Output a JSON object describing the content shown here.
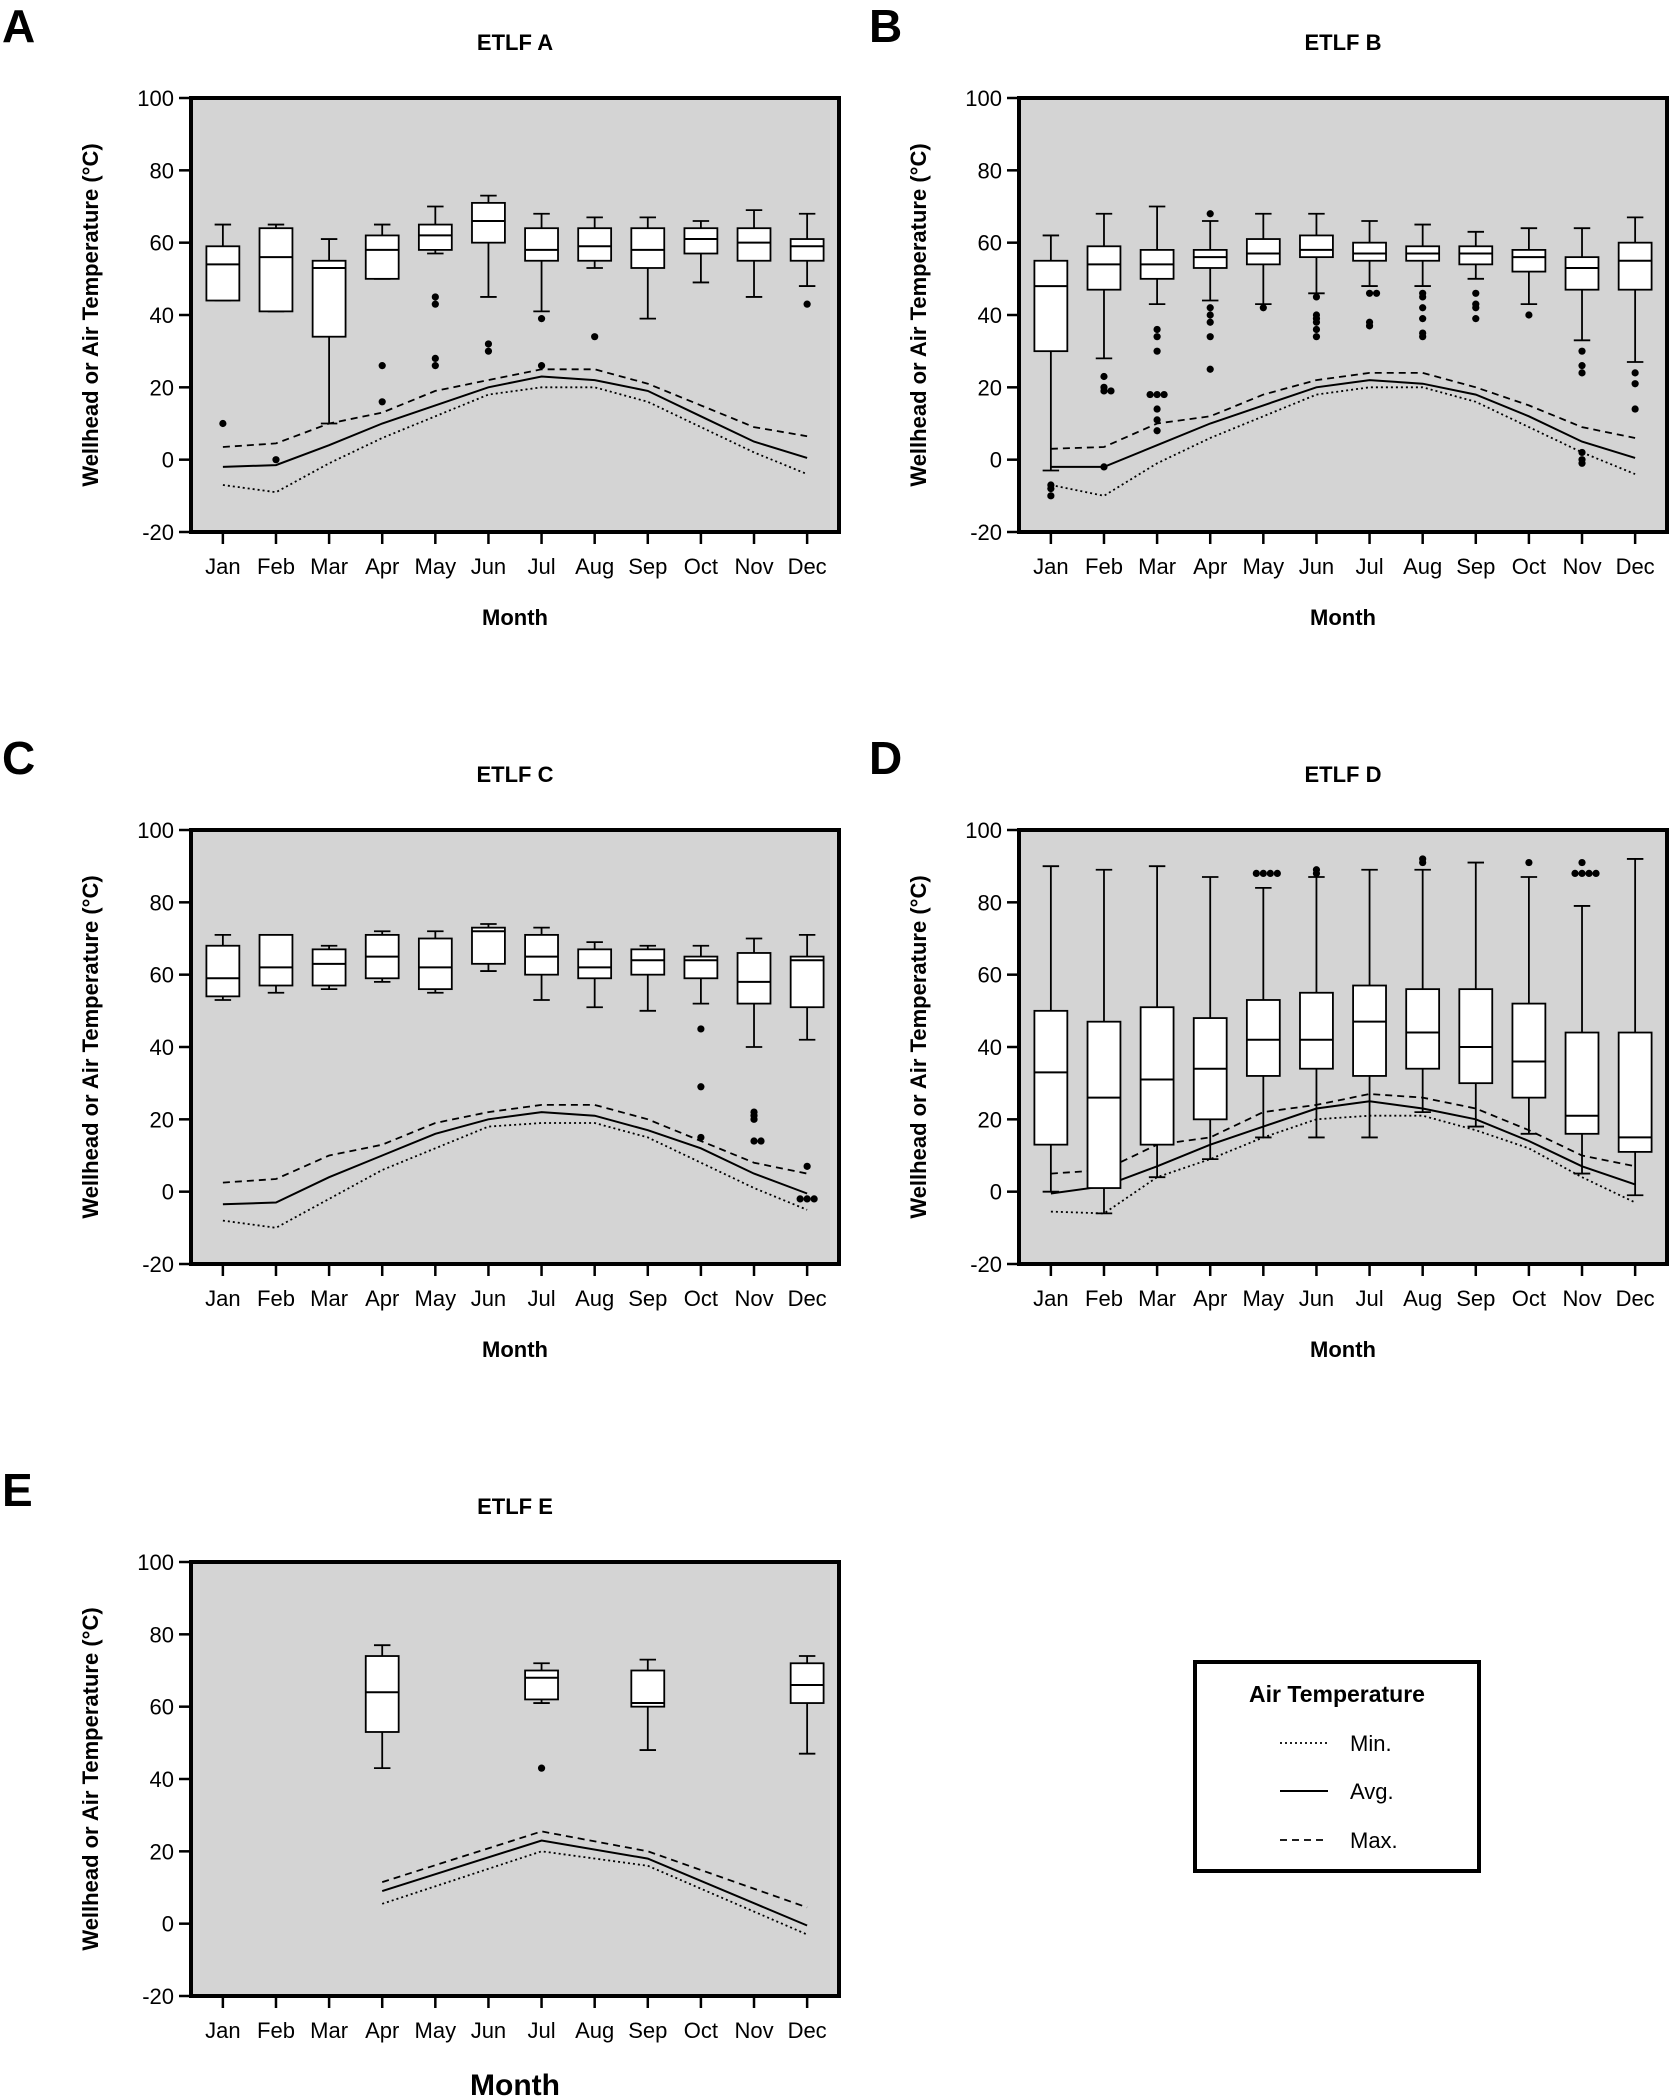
{
  "chart_data": [
    {
      "panel": "A",
      "type": "box",
      "title": "ETLF A",
      "xlabel": "Month",
      "ylabel": "Wellhead or Air Temperature (°C)",
      "ylim": [
        -20,
        100
      ],
      "yticks": [
        -20,
        0,
        20,
        40,
        60,
        80,
        100
      ],
      "categories": [
        "Jan",
        "Feb",
        "Mar",
        "Apr",
        "May",
        "Jun",
        "Jul",
        "Aug",
        "Sep",
        "Oct",
        "Nov",
        "Dec"
      ],
      "boxes": [
        {
          "min": 44,
          "q1": 44,
          "median": 54,
          "q3": 59,
          "max": 65,
          "outliers": [
            10
          ]
        },
        {
          "min": 41,
          "q1": 41,
          "median": 56,
          "q3": 64,
          "max": 65,
          "outliers": [
            0
          ]
        },
        {
          "min": 10,
          "q1": 34,
          "median": 53,
          "q3": 55,
          "max": 61,
          "outliers": []
        },
        {
          "min": 50,
          "q1": 50,
          "median": 58,
          "q3": 62,
          "max": 65,
          "outliers": [
            26,
            16
          ]
        },
        {
          "min": 57,
          "q1": 58,
          "median": 62,
          "q3": 65,
          "max": 70,
          "outliers": [
            45,
            43,
            28,
            26
          ]
        },
        {
          "min": 45,
          "q1": 60,
          "median": 66,
          "q3": 71,
          "max": 73,
          "outliers": [
            32,
            30
          ]
        },
        {
          "min": 41,
          "q1": 55,
          "median": 58,
          "q3": 64,
          "max": 68,
          "outliers": [
            39,
            26
          ]
        },
        {
          "min": 53,
          "q1": 55,
          "median": 59,
          "q3": 64,
          "max": 67,
          "outliers": [
            34
          ]
        },
        {
          "min": 39,
          "q1": 53,
          "median": 58,
          "q3": 64,
          "max": 67,
          "outliers": []
        },
        {
          "min": 49,
          "q1": 57,
          "median": 61,
          "q3": 64,
          "max": 66,
          "outliers": []
        },
        {
          "min": 45,
          "q1": 55,
          "median": 60,
          "q3": 64,
          "max": 69,
          "outliers": []
        },
        {
          "min": 48,
          "q1": 55,
          "median": 59,
          "q3": 61,
          "max": 68,
          "outliers": [
            43
          ]
        }
      ],
      "air": {
        "min": [
          -7,
          -9,
          -1,
          6,
          12,
          18,
          20,
          20,
          16,
          9,
          2,
          -4
        ],
        "avg": [
          -2,
          -1.5,
          4,
          10,
          15,
          20,
          23,
          22,
          19,
          12,
          5,
          0.5
        ],
        "max": [
          3.5,
          4.5,
          10,
          13,
          19,
          22,
          25,
          25,
          21,
          15,
          9,
          6.5
        ]
      }
    },
    {
      "panel": "B",
      "type": "box",
      "title": "ETLF B",
      "xlabel": "Month",
      "ylabel": "Wellhead or Air Temperature (°C)",
      "ylim": [
        -20,
        100
      ],
      "yticks": [
        -20,
        0,
        20,
        40,
        60,
        80,
        100
      ],
      "categories": [
        "Jan",
        "Feb",
        "Mar",
        "Apr",
        "May",
        "Jun",
        "Jul",
        "Aug",
        "Sep",
        "Oct",
        "Nov",
        "Dec"
      ],
      "boxes": [
        {
          "min": -3,
          "q1": 30,
          "median": 48,
          "q3": 55,
          "max": 62,
          "outliers": [
            -7,
            -8,
            -10
          ]
        },
        {
          "min": 28,
          "q1": 47,
          "median": 54,
          "q3": 59,
          "max": 68,
          "outliers": [
            23,
            20,
            19,
            19,
            -2
          ]
        },
        {
          "min": 43,
          "q1": 50,
          "median": 54,
          "q3": 58,
          "max": 70,
          "outliers": [
            36,
            34,
            30,
            18,
            18,
            18,
            14,
            11,
            8
          ]
        },
        {
          "min": 44,
          "q1": 53,
          "median": 56,
          "q3": 58,
          "max": 66,
          "outliers": [
            68,
            42,
            40,
            38,
            34,
            25
          ]
        },
        {
          "min": 43,
          "q1": 54,
          "median": 57,
          "q3": 61,
          "max": 68,
          "outliers": [
            42
          ]
        },
        {
          "min": 46,
          "q1": 56,
          "median": 58,
          "q3": 62,
          "max": 68,
          "outliers": [
            45,
            40,
            39,
            38,
            36,
            34
          ]
        },
        {
          "min": 48,
          "q1": 55,
          "median": 57,
          "q3": 60,
          "max": 66,
          "outliers": [
            46,
            46,
            38,
            37
          ]
        },
        {
          "min": 48,
          "q1": 55,
          "median": 57,
          "q3": 59,
          "max": 65,
          "outliers": [
            46,
            45,
            42,
            39,
            35,
            34
          ]
        },
        {
          "min": 50,
          "q1": 54,
          "median": 57,
          "q3": 59,
          "max": 63,
          "outliers": [
            46,
            43,
            42,
            39
          ]
        },
        {
          "min": 43,
          "q1": 52,
          "median": 56,
          "q3": 58,
          "max": 64,
          "outliers": [
            40
          ]
        },
        {
          "min": 33,
          "q1": 47,
          "median": 53,
          "q3": 56,
          "max": 64,
          "outliers": [
            30,
            26,
            24,
            2,
            0,
            -1
          ]
        },
        {
          "min": 27,
          "q1": 47,
          "median": 55,
          "q3": 60,
          "max": 67,
          "outliers": [
            24,
            21,
            14
          ]
        }
      ],
      "air": {
        "min": [
          -7,
          -10,
          -1,
          6,
          12,
          18,
          20,
          20,
          16,
          9,
          2,
          -4
        ],
        "avg": [
          -2,
          -2,
          4,
          10,
          15,
          20,
          22,
          21,
          18,
          12,
          5,
          0.5
        ],
        "max": [
          3,
          3.5,
          10,
          12,
          18,
          22,
          24,
          24,
          20,
          15,
          9,
          6
        ]
      }
    },
    {
      "panel": "C",
      "type": "box",
      "title": "ETLF C",
      "xlabel": "Month",
      "ylabel": "Wellhead or Air Temperature (°C)",
      "ylim": [
        -20,
        100
      ],
      "yticks": [
        -20,
        0,
        20,
        40,
        60,
        80,
        100
      ],
      "categories": [
        "Jan",
        "Feb",
        "Mar",
        "Apr",
        "May",
        "Jun",
        "Jul",
        "Aug",
        "Sep",
        "Oct",
        "Nov",
        "Dec"
      ],
      "boxes": [
        {
          "min": 53,
          "q1": 54,
          "median": 59,
          "q3": 68,
          "max": 71,
          "outliers": []
        },
        {
          "min": 55,
          "q1": 57,
          "median": 62,
          "q3": 71,
          "max": 71,
          "outliers": []
        },
        {
          "min": 56,
          "q1": 57,
          "median": 63,
          "q3": 67,
          "max": 68,
          "outliers": []
        },
        {
          "min": 58,
          "q1": 59,
          "median": 65,
          "q3": 71,
          "max": 72,
          "outliers": []
        },
        {
          "min": 55,
          "q1": 56,
          "median": 62,
          "q3": 70,
          "max": 72,
          "outliers": []
        },
        {
          "min": 61,
          "q1": 63,
          "median": 72,
          "q3": 73,
          "max": 74,
          "outliers": []
        },
        {
          "min": 53,
          "q1": 60,
          "median": 65,
          "q3": 71,
          "max": 73,
          "outliers": []
        },
        {
          "min": 51,
          "q1": 59,
          "median": 62,
          "q3": 67,
          "max": 69,
          "outliers": []
        },
        {
          "min": 50,
          "q1": 60,
          "median": 64,
          "q3": 67,
          "max": 68,
          "outliers": []
        },
        {
          "min": 52,
          "q1": 59,
          "median": 64,
          "q3": 65,
          "max": 68,
          "outliers": [
            45,
            29,
            15
          ]
        },
        {
          "min": 40,
          "q1": 52,
          "median": 58,
          "q3": 66,
          "max": 70,
          "outliers": [
            22,
            21,
            20,
            14,
            14
          ]
        },
        {
          "min": 42,
          "q1": 51,
          "median": 64,
          "q3": 65,
          "max": 71,
          "outliers": [
            7,
            -2,
            -2,
            -2
          ]
        }
      ],
      "air": {
        "min": [
          -8,
          -10,
          -2,
          6,
          12,
          18,
          19,
          19,
          15,
          8,
          1,
          -5
        ],
        "avg": [
          -3.5,
          -3,
          4,
          10,
          16,
          20,
          22,
          21,
          17,
          12,
          5,
          -0.5
        ],
        "max": [
          2.5,
          3.5,
          10,
          13,
          19,
          22,
          24,
          24,
          20,
          14,
          8,
          5
        ]
      }
    },
    {
      "panel": "D",
      "type": "box",
      "title": "ETLF D",
      "xlabel": "Month",
      "ylabel": "Wellhead or Air Temperature (°C)",
      "ylim": [
        -20,
        100
      ],
      "yticks": [
        -20,
        0,
        20,
        40,
        60,
        80,
        100
      ],
      "categories": [
        "Jan",
        "Feb",
        "Mar",
        "Apr",
        "May",
        "Jun",
        "Jul",
        "Aug",
        "Sep",
        "Oct",
        "Nov",
        "Dec"
      ],
      "boxes": [
        {
          "min": 0,
          "q1": 13,
          "median": 33,
          "q3": 50,
          "max": 90,
          "outliers": []
        },
        {
          "min": -6,
          "q1": 1,
          "median": 26,
          "q3": 47,
          "max": 89,
          "outliers": []
        },
        {
          "min": 4,
          "q1": 13,
          "median": 31,
          "q3": 51,
          "max": 90,
          "outliers": []
        },
        {
          "min": 9,
          "q1": 20,
          "median": 34,
          "q3": 48,
          "max": 87,
          "outliers": []
        },
        {
          "min": 15,
          "q1": 32,
          "median": 42,
          "q3": 53,
          "max": 84,
          "outliers": [
            88,
            88,
            88,
            88
          ]
        },
        {
          "min": 15,
          "q1": 34,
          "median": 42,
          "q3": 55,
          "max": 87,
          "outliers": [
            89,
            88
          ]
        },
        {
          "min": 15,
          "q1": 32,
          "median": 47,
          "q3": 57,
          "max": 89,
          "outliers": []
        },
        {
          "min": 22,
          "q1": 34,
          "median": 44,
          "q3": 56,
          "max": 89,
          "outliers": [
            92,
            91
          ]
        },
        {
          "min": 18,
          "q1": 30,
          "median": 40,
          "q3": 56,
          "max": 91,
          "outliers": []
        },
        {
          "min": 16,
          "q1": 26,
          "median": 36,
          "q3": 52,
          "max": 87,
          "outliers": [
            91
          ]
        },
        {
          "min": 5,
          "q1": 16,
          "median": 21,
          "q3": 44,
          "max": 79,
          "outliers": [
            88,
            88,
            88,
            88,
            91
          ]
        },
        {
          "min": -1,
          "q1": 11,
          "median": 15,
          "q3": 44,
          "max": 92,
          "outliers": []
        }
      ],
      "air": {
        "min": [
          -5.5,
          -6,
          4,
          9,
          15,
          20,
          21,
          21,
          17,
          12,
          4,
          -3
        ],
        "avg": [
          -0.5,
          1.5,
          7,
          13,
          18,
          23,
          25,
          23,
          20,
          14,
          7,
          2
        ],
        "max": [
          5,
          6,
          13,
          15,
          22,
          24,
          27,
          26,
          23,
          17,
          10,
          7
        ]
      }
    },
    {
      "panel": "E",
      "type": "box",
      "title": "ETLF E",
      "xlabel": "Month",
      "ylabel": "Wellhead or Air Temperature (°C)",
      "ylim": [
        -20,
        100
      ],
      "yticks": [
        -20,
        0,
        20,
        40,
        60,
        80,
        100
      ],
      "categories": [
        "Jan",
        "Feb",
        "Mar",
        "Apr",
        "May",
        "Jun",
        "Jul",
        "Aug",
        "Sep",
        "Oct",
        "Nov",
        "Dec"
      ],
      "boxes": [
        null,
        null,
        null,
        {
          "min": 43,
          "q1": 53,
          "median": 64,
          "q3": 74,
          "max": 77,
          "outliers": []
        },
        null,
        null,
        {
          "min": 61,
          "q1": 62,
          "median": 68,
          "q3": 70,
          "max": 72,
          "outliers": [
            43
          ]
        },
        null,
        {
          "min": 48,
          "q1": 60,
          "median": 61,
          "q3": 70,
          "max": 73,
          "outliers": []
        },
        null,
        null,
        {
          "min": 47,
          "q1": 61,
          "median": 66,
          "q3": 72,
          "max": 74,
          "outliers": []
        }
      ],
      "air": {
        "min": [
          null,
          null,
          null,
          5.5,
          null,
          null,
          20,
          null,
          16,
          null,
          null,
          -3
        ],
        "avg": [
          null,
          null,
          null,
          9,
          null,
          null,
          23,
          null,
          18,
          null,
          null,
          -0.5
        ],
        "max": [
          null,
          null,
          null,
          11.5,
          null,
          null,
          25.5,
          null,
          20,
          null,
          null,
          4.5
        ]
      }
    }
  ],
  "legend": {
    "title": "Air Temperature",
    "items": [
      {
        "label": "Min.",
        "style": "dotted"
      },
      {
        "label": "Avg.",
        "style": "solid"
      },
      {
        "label": "Max.",
        "style": "dashed"
      }
    ]
  },
  "colors": {
    "plot_background": "#d4d4d4",
    "frame": "#000000",
    "box_fill": "#ffffff"
  }
}
